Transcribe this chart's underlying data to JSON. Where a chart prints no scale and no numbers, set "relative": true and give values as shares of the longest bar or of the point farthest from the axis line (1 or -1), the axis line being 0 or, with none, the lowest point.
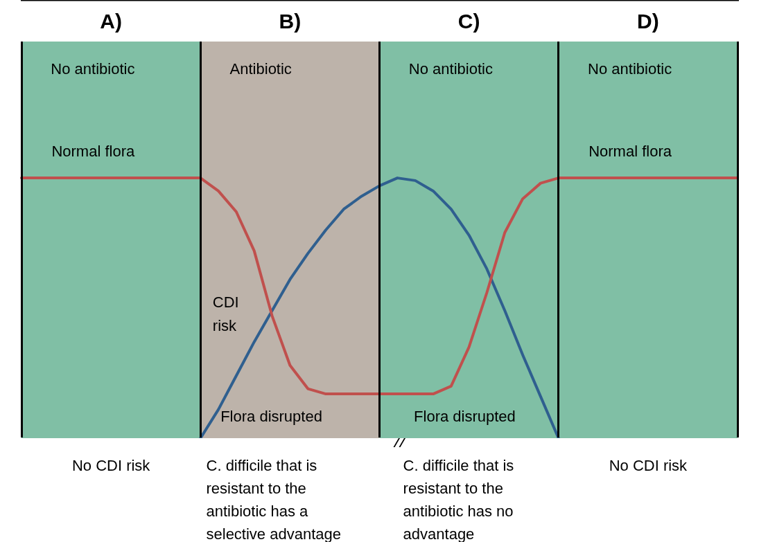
{
  "chart_data": {
    "type": "line",
    "relative": true,
    "categories": [
      null,
      null,
      null,
      null,
      null,
      null,
      null,
      null,
      null,
      null,
      null,
      null,
      null,
      null,
      null,
      null,
      null,
      null,
      null,
      null,
      null,
      null,
      null,
      null,
      null,
      null,
      null,
      null,
      null,
      null,
      null,
      null,
      null,
      null,
      null,
      null,
      null,
      null,
      null,
      null,
      null
    ],
    "series": [
      {
        "color": "#c0504d",
        "values": [
          1,
          1,
          1,
          1,
          1,
          1,
          1,
          1,
          1,
          1,
          1,
          0.95,
          0.87,
          0.72,
          0.47,
          0.28,
          0.19,
          0.17,
          0.17,
          0.17,
          0.17,
          0.17,
          0.17,
          0.17,
          0.2,
          0.35,
          0.56,
          0.79,
          0.92,
          0.98,
          1,
          1,
          1,
          1,
          1,
          1,
          1,
          1,
          1,
          1,
          1
        ]
      },
      {
        "color": "#2f5f8f",
        "values": [
          null,
          null,
          null,
          null,
          null,
          null,
          null,
          null,
          null,
          null,
          0,
          0.11,
          0.24,
          0.37,
          0.49,
          0.61,
          0.71,
          0.8,
          0.88,
          0.93,
          0.97,
          1,
          0.99,
          0.95,
          0.88,
          0.78,
          0.65,
          0.49,
          0.32,
          0.16,
          0,
          null,
          null,
          null,
          null,
          null,
          null,
          null,
          null,
          null,
          null
        ]
      }
    ],
    "annotations": [
      "A)",
      "B)",
      "C)",
      "D)",
      "No antibiotic",
      "Antibiotic",
      "No antibiotic",
      "No antibiotic",
      "Normal flora",
      "Normal flora",
      "CDI risk",
      "Flora disrupted",
      "Flora disrupted",
      "No CDI risk",
      "C. difficile that is resistant to the antibiotic has a selective advantage",
      "C. difficile that is resistant to the antibiotic has no advantage",
      "No CDI risk"
    ],
    "grid": "x",
    "legend": false,
    "marker": "none",
    "line_style": "solid"
  }
}
